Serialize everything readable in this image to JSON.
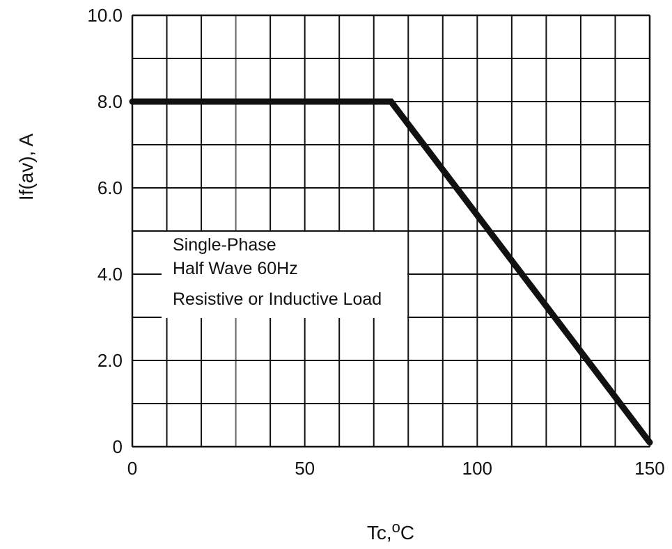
{
  "chart_data": {
    "type": "line",
    "xlabel": "Tc,ºC",
    "ylabel": "If(av), A",
    "xlim": [
      0,
      150
    ],
    "ylim": [
      0,
      10
    ],
    "grid": true,
    "x_ticks": [
      0,
      50,
      100,
      150
    ],
    "x_tick_labels": [
      "0",
      "50",
      "100",
      "150"
    ],
    "y_ticks": [
      0,
      2,
      4,
      6,
      8,
      10
    ],
    "y_tick_labels": [
      "0",
      "2.0",
      "4.0",
      "6.0",
      "8.0",
      "10.0"
    ],
    "series": [
      {
        "x": [
          0,
          75,
          150
        ],
        "y": [
          8.0,
          8.0,
          0.1
        ]
      }
    ],
    "annotation_lines": [
      "Single-Phase",
      "Half Wave 60Hz",
      "Resistive or Inductive Load"
    ]
  }
}
